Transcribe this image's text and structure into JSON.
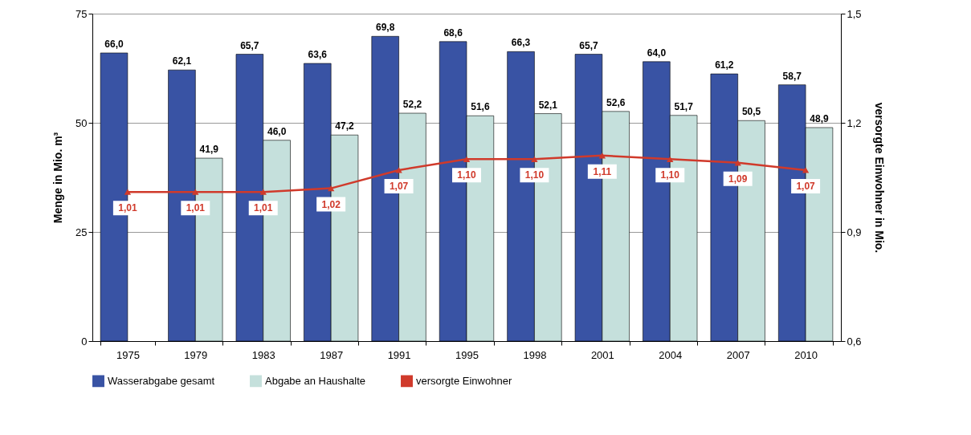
{
  "chart_data": {
    "type": "bar",
    "categories": [
      "1975",
      "1979",
      "1983",
      "1987",
      "1991",
      "1995",
      "1998",
      "2001",
      "2004",
      "2007",
      "2010"
    ],
    "ylabel": "Menge in Mio. m³",
    "y2label": "versorgte Einwohner in Mio.",
    "ylim": [
      0,
      75
    ],
    "yticks": [
      0,
      25,
      50,
      75
    ],
    "y2lim": [
      0.6,
      1.5
    ],
    "y2ticks": [
      {
        "value": 0.6,
        "label": "0,6"
      },
      {
        "value": 0.9,
        "label": "0,9"
      },
      {
        "value": 1.2,
        "label": "1,2"
      },
      {
        "value": 1.5,
        "label": "1,5"
      }
    ],
    "grid": "y",
    "legend": "bottom",
    "series": [
      {
        "name": "Wasserabgabe gesamt",
        "color": "#3953a4",
        "values": [
          66.0,
          62.1,
          65.7,
          63.6,
          69.8,
          68.6,
          66.3,
          65.7,
          64.0,
          61.2,
          58.7
        ],
        "value_labels": [
          "66,0",
          "62,1",
          "65,7",
          "63,6",
          "69,8",
          "68,6",
          "66,3",
          "65,7",
          "64,0",
          "61,2",
          "58,7"
        ]
      },
      {
        "name": "Abgabe an Haushalte",
        "color": "#c5e0dc",
        "values": [
          null,
          41.9,
          46.0,
          47.2,
          52.2,
          51.6,
          52.1,
          52.6,
          51.7,
          50.5,
          48.9
        ],
        "value_labels": [
          null,
          "41,9",
          "46,0",
          "47,2",
          "52,2",
          "51,6",
          "52,1",
          "52,6",
          "51,7",
          "50,5",
          "48,9"
        ]
      },
      {
        "name": "versorgte Einwohner",
        "type": "line",
        "axis": "y2",
        "marker": "triangle",
        "color": "#d03a2b",
        "values": [
          1.01,
          1.01,
          1.01,
          1.02,
          1.07,
          1.1,
          1.1,
          1.11,
          1.1,
          1.09,
          1.07
        ],
        "value_labels": [
          "1,01",
          "1,01",
          "1,01",
          "1,02",
          "1,07",
          "1,10",
          "1,10",
          "1,11",
          "1,10",
          "1,09",
          "1,07"
        ]
      }
    ]
  }
}
